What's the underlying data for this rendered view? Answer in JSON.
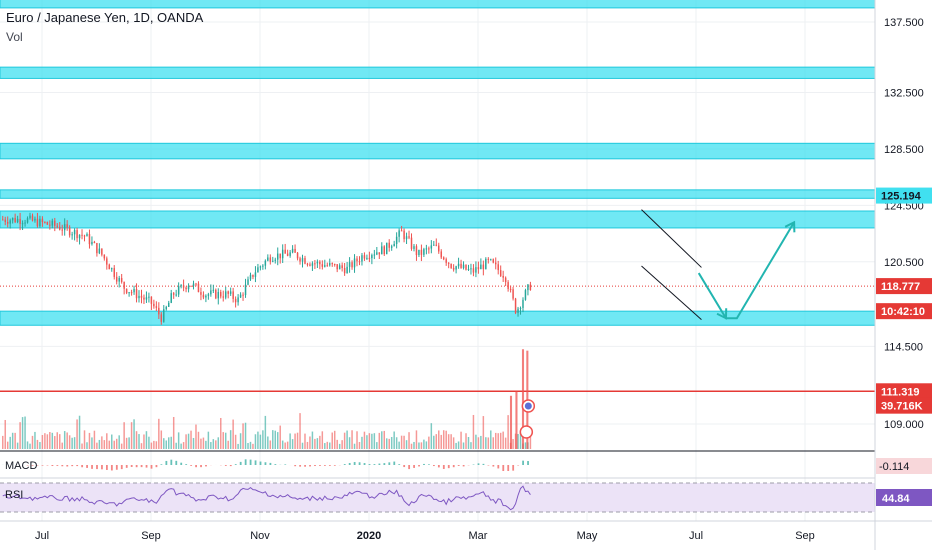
{
  "header": {
    "title": "Euro / Japanese Yen, 1D, OANDA",
    "volume_label": "Vol"
  },
  "indicators": {
    "macd_label": "MACD",
    "rsi_label": "RSI"
  },
  "colors": {
    "up": "#26a69a",
    "down": "#ef5350",
    "zone_fill": "#40e0f0",
    "zone_border": "#1fc8dc",
    "support_line": "#e53935",
    "channel": "#131722",
    "projection": "#22b5b0",
    "rsi_bg": "#ece3f7",
    "rsi_line": "#7e57c2"
  },
  "chart_data": {
    "type": "candlestick",
    "symbol": "EURJPY",
    "timeframe": "1D",
    "source": "OANDA",
    "price_axis": {
      "ticks": [
        "137.500",
        "132.500",
        "128.500",
        "124.500",
        "120.500",
        "114.500",
        "109.000"
      ],
      "tick_values": [
        137.5,
        132.5,
        128.5,
        124.5,
        120.5,
        114.5,
        109.0
      ],
      "range": [
        106.6,
        139.2
      ]
    },
    "time_axis": {
      "labels": [
        "Jul",
        "Sep",
        "Nov",
        "2020",
        "Mar",
        "May",
        "Jul",
        "Sep"
      ],
      "label_months": [
        0,
        2,
        4,
        6,
        8,
        10,
        12,
        14
      ]
    },
    "price_badges": [
      {
        "label": "125.194",
        "value": 125.194,
        "style": "cyan"
      },
      {
        "label": "118.777",
        "value": 118.777,
        "style": "red"
      },
      {
        "label": "10:42:10",
        "value": 117.0,
        "style": "red"
      },
      {
        "label": "111.319",
        "value": 111.319,
        "style": "red"
      },
      {
        "label": "39.716K",
        "value": 110.3,
        "style": "red"
      }
    ],
    "macd_badge": "-0.114",
    "rsi_badge": "44.84",
    "last_price": 118.777,
    "horizontal_line": 111.319,
    "zones": [
      {
        "from": 138.5,
        "to": 139.3
      },
      {
        "from": 133.5,
        "to": 134.3
      },
      {
        "from": 127.8,
        "to": 128.9
      },
      {
        "from": 125.0,
        "to": 125.6
      },
      {
        "from": 122.9,
        "to": 124.1
      },
      {
        "from": 116.0,
        "to": 117.0
      }
    ],
    "channel": {
      "upper": {
        "from": [
          11.0,
          124.2
        ],
        "to": [
          12.1,
          120.1
        ]
      },
      "lower": {
        "from": [
          11.0,
          120.2
        ],
        "to": [
          12.1,
          116.4
        ]
      }
    },
    "projection": [
      [
        12.05,
        119.7
      ],
      [
        12.55,
        116.5
      ],
      [
        12.75,
        116.5
      ],
      [
        13.8,
        123.3
      ]
    ],
    "series_keypoints": [
      [
        -0.3,
        123.5
      ],
      [
        0.3,
        123.0
      ],
      [
        0.8,
        122.3
      ],
      [
        1.1,
        121.0
      ],
      [
        1.5,
        118.7
      ],
      [
        2.0,
        117.6
      ],
      [
        2.2,
        116.5
      ],
      [
        2.4,
        118.2
      ],
      [
        2.7,
        119.0
      ],
      [
        3.0,
        118.2
      ],
      [
        3.4,
        118.2
      ],
      [
        3.6,
        117.8
      ],
      [
        3.9,
        119.8
      ],
      [
        4.2,
        120.9
      ],
      [
        4.6,
        121.1
      ],
      [
        4.9,
        120.5
      ],
      [
        5.3,
        120.2
      ],
      [
        5.6,
        120.0
      ],
      [
        5.9,
        121.0
      ],
      [
        6.3,
        121.4
      ],
      [
        6.6,
        122.6
      ],
      [
        6.9,
        121.0
      ],
      [
        7.2,
        121.6
      ],
      [
        7.5,
        120.3
      ],
      [
        7.9,
        119.8
      ],
      [
        8.2,
        120.5
      ],
      [
        8.5,
        119.5
      ],
      [
        8.7,
        117.0
      ],
      [
        8.95,
        118.8
      ]
    ],
    "volume_spikes": [
      [
        8.82,
        114.3
      ],
      [
        8.9,
        114.2
      ],
      [
        8.7,
        111.3
      ],
      [
        8.6,
        111.0
      ]
    ]
  }
}
